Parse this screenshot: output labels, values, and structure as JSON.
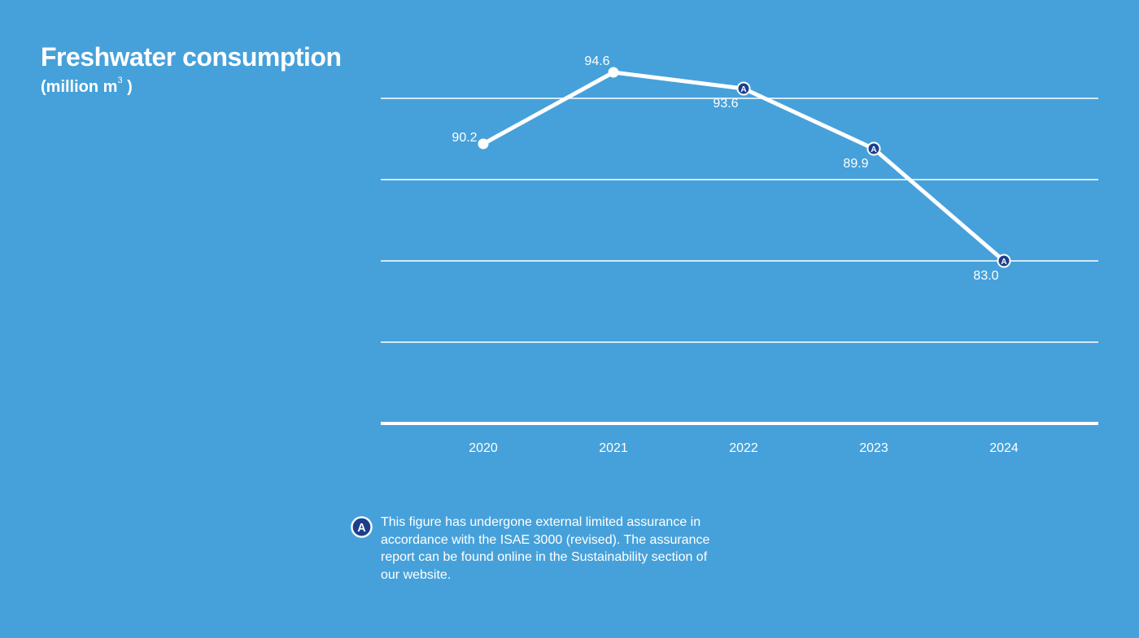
{
  "header": {
    "title": "Freshwater consumption",
    "unit_prefix": "(million m",
    "unit_sup": "3",
    "unit_suffix": " )"
  },
  "chart_data": {
    "type": "line",
    "title": "Freshwater consumption",
    "ylabel": "million m³",
    "x": [
      "2020",
      "2021",
      "2022",
      "2023",
      "2024"
    ],
    "series": [
      {
        "name": "Freshwater consumption",
        "values": [
          90.2,
          94.6,
          93.6,
          89.9,
          83.0
        ],
        "labels": [
          "90.2",
          "94.6",
          "93.6",
          "89.9",
          "83.0"
        ],
        "assured": [
          false,
          false,
          true,
          true,
          true
        ]
      }
    ],
    "ylim": [
      73,
      98
    ],
    "gridlines": [
      78,
      83,
      88,
      93
    ],
    "grid": true,
    "legend": "none"
  },
  "footnote": {
    "badge": "A",
    "text": "This figure has undergone external limited assurance in accordance with the ISAE 3000 (revised). The assurance report can be found online in the Sustainability section of our website."
  },
  "colors": {
    "background": "#46a1da",
    "line": "#ffffff",
    "badge_fill": "#1b3f8c"
  }
}
